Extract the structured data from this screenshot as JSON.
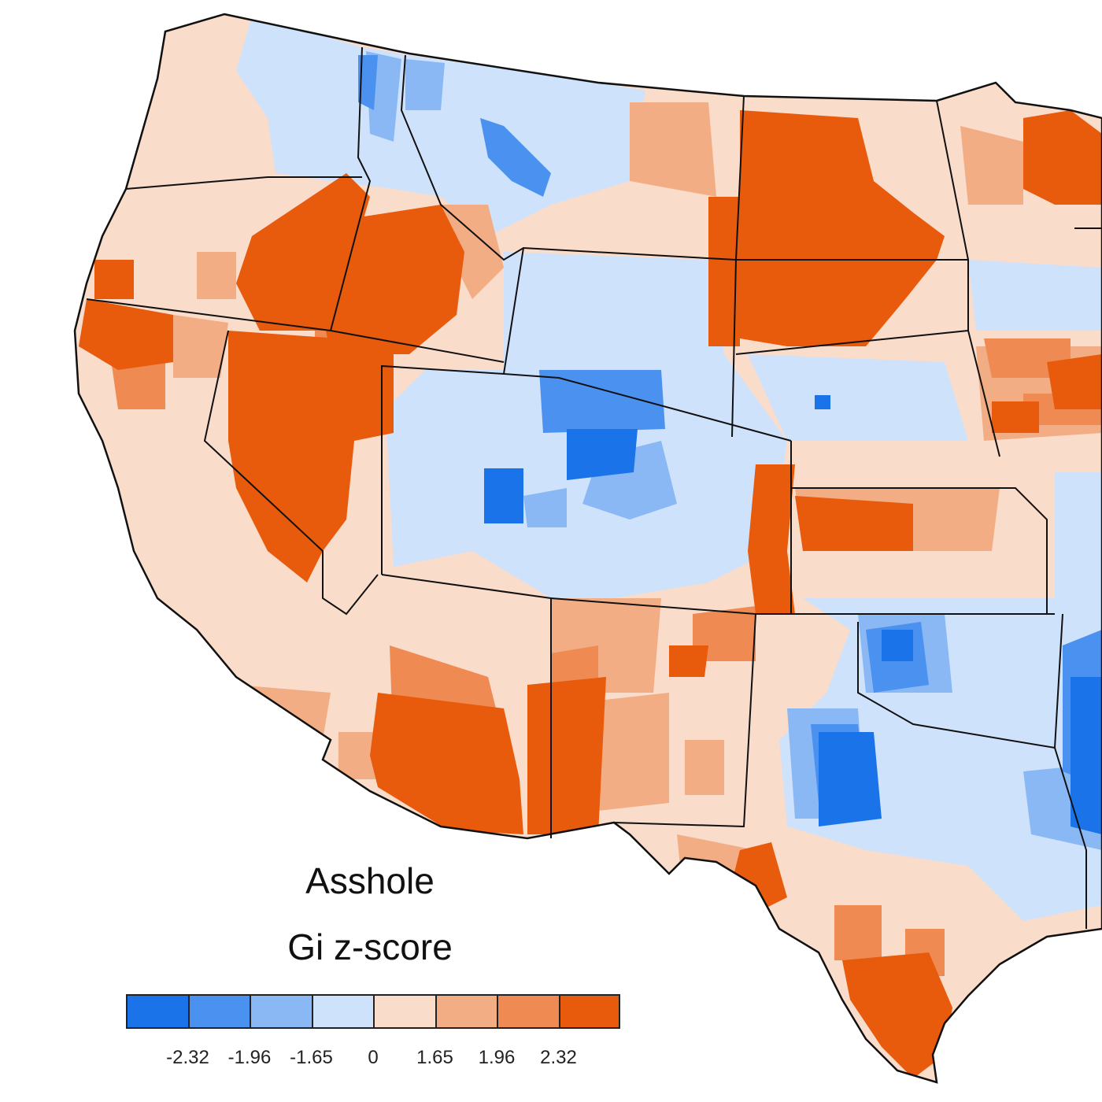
{
  "map": {
    "title": "Asshole",
    "subtitle": "Gi z-score",
    "legend": {
      "bins": [
        {
          "name": "z < -2.32",
          "color": "#1a73e8"
        },
        {
          "name": "-2.32 to -1.96",
          "color": "#4b91ef"
        },
        {
          "name": "-1.96 to -1.65",
          "color": "#8ab8f5"
        },
        {
          "name": "-1.65 to 0",
          "color": "#cfe2fb"
        },
        {
          "name": "0 to 1.65",
          "color": "#fadcca"
        },
        {
          "name": "1.65 to 1.96",
          "color": "#f3ad84"
        },
        {
          "name": "1.96 to 2.32",
          "color": "#ee8a52"
        },
        {
          "name": "z > 2.32",
          "color": "#e85a0c"
        }
      ],
      "ticks": [
        "-2.32",
        "-1.96",
        "-1.65",
        "0",
        "1.65",
        "1.96",
        "2.32"
      ]
    },
    "colors": {
      "background": "#ffffff",
      "border": "#111111"
    }
  }
}
